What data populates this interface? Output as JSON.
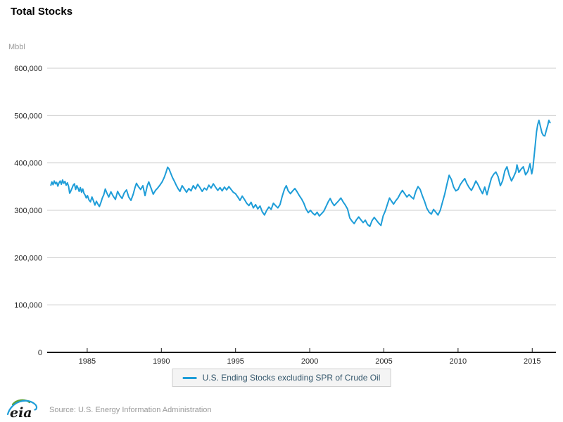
{
  "header": {
    "title": "Total Stocks"
  },
  "unit_label": "Mbbl",
  "legend": {
    "label": "U.S. Ending Stocks excluding SPR of Crude Oil"
  },
  "footer": {
    "logo_text": "eia",
    "source": "Source: U.S. Energy Information Administration"
  },
  "colors": {
    "line": "#1e9dd8",
    "gridline": "#cccccc",
    "axis": "#1a1a1a",
    "tick_text": "#262626",
    "muted_text": "#999999",
    "legend_bg": "#f4f4f4",
    "legend_border": "#cfcfcf",
    "legend_text": "#33566b",
    "logo_green": "#5fa33a",
    "logo_blue": "#1e9dd8"
  },
  "chart_data": {
    "type": "line",
    "title": "Total Stocks",
    "ylabel": "Mbbl",
    "xlabel": "",
    "grid": true,
    "legend_position": "bottom-center",
    "xlim": [
      1982.3,
      2016.6
    ],
    "ylim": [
      0,
      600000
    ],
    "xticks": [
      {
        "value": 1985,
        "label": "1985"
      },
      {
        "value": 1990,
        "label": "1990"
      },
      {
        "value": 1995,
        "label": "1995"
      },
      {
        "value": 2000,
        "label": "2000"
      },
      {
        "value": 2005,
        "label": "2005"
      },
      {
        "value": 2010,
        "label": "2010"
      },
      {
        "value": 2015,
        "label": "2015"
      }
    ],
    "yticks": [
      {
        "value": 0,
        "label": "0"
      },
      {
        "value": 100000,
        "label": "100,000"
      },
      {
        "value": 200000,
        "label": "200,000"
      },
      {
        "value": 300000,
        "label": "300,000"
      },
      {
        "value": 400000,
        "label": "400,000"
      },
      {
        "value": 500000,
        "label": "500,000"
      },
      {
        "value": 600000,
        "label": "600,000"
      }
    ],
    "series": [
      {
        "name": "U.S. Ending Stocks excluding SPR of Crude Oil",
        "color": "#1e9dd8",
        "points": [
          [
            1982.55,
            353000
          ],
          [
            1982.62,
            360000
          ],
          [
            1982.7,
            354000
          ],
          [
            1982.78,
            362000
          ],
          [
            1982.86,
            356000
          ],
          [
            1982.94,
            359000
          ],
          [
            1983.02,
            351000
          ],
          [
            1983.1,
            358000
          ],
          [
            1983.18,
            362000
          ],
          [
            1983.26,
            355000
          ],
          [
            1983.34,
            364000
          ],
          [
            1983.42,
            357000
          ],
          [
            1983.5,
            361000
          ],
          [
            1983.58,
            353000
          ],
          [
            1983.66,
            358000
          ],
          [
            1983.74,
            351000
          ],
          [
            1983.82,
            336000
          ],
          [
            1983.9,
            341000
          ],
          [
            1983.98,
            347000
          ],
          [
            1984.06,
            353000
          ],
          [
            1984.14,
            356000
          ],
          [
            1984.22,
            344000
          ],
          [
            1984.3,
            352000
          ],
          [
            1984.38,
            347000
          ],
          [
            1984.46,
            340000
          ],
          [
            1984.54,
            348000
          ],
          [
            1984.62,
            338000
          ],
          [
            1984.7,
            345000
          ],
          [
            1984.78,
            336000
          ],
          [
            1984.86,
            332000
          ],
          [
            1984.94,
            326000
          ],
          [
            1985.02,
            331000
          ],
          [
            1985.12,
            322000
          ],
          [
            1985.22,
            318000
          ],
          [
            1985.32,
            328000
          ],
          [
            1985.42,
            320000
          ],
          [
            1985.52,
            311000
          ],
          [
            1985.62,
            319000
          ],
          [
            1985.72,
            313000
          ],
          [
            1985.82,
            308000
          ],
          [
            1985.92,
            316000
          ],
          [
            1986.02,
            326000
          ],
          [
            1986.12,
            333000
          ],
          [
            1986.22,
            345000
          ],
          [
            1986.32,
            337000
          ],
          [
            1986.45,
            328000
          ],
          [
            1986.6,
            339000
          ],
          [
            1986.75,
            330000
          ],
          [
            1986.9,
            323000
          ],
          [
            1987.05,
            340000
          ],
          [
            1987.2,
            331000
          ],
          [
            1987.35,
            325000
          ],
          [
            1987.5,
            337000
          ],
          [
            1987.65,
            343000
          ],
          [
            1987.8,
            328000
          ],
          [
            1987.95,
            321000
          ],
          [
            1988.1,
            334000
          ],
          [
            1988.22,
            348000
          ],
          [
            1988.32,
            357000
          ],
          [
            1988.45,
            350000
          ],
          [
            1988.6,
            344000
          ],
          [
            1988.75,
            352000
          ],
          [
            1988.9,
            331000
          ],
          [
            1989.05,
            352000
          ],
          [
            1989.15,
            360000
          ],
          [
            1989.3,
            347000
          ],
          [
            1989.45,
            334000
          ],
          [
            1989.6,
            342000
          ],
          [
            1989.75,
            347000
          ],
          [
            1989.9,
            353000
          ],
          [
            1990.05,
            360000
          ],
          [
            1990.2,
            370000
          ],
          [
            1990.32,
            381000
          ],
          [
            1990.42,
            391000
          ],
          [
            1990.52,
            387000
          ],
          [
            1990.62,
            379000
          ],
          [
            1990.75,
            369000
          ],
          [
            1990.88,
            361000
          ],
          [
            1991.0,
            353000
          ],
          [
            1991.12,
            346000
          ],
          [
            1991.25,
            340000
          ],
          [
            1991.4,
            352000
          ],
          [
            1991.55,
            345000
          ],
          [
            1991.7,
            338000
          ],
          [
            1991.85,
            346000
          ],
          [
            1992.0,
            341000
          ],
          [
            1992.15,
            352000
          ],
          [
            1992.3,
            345000
          ],
          [
            1992.45,
            355000
          ],
          [
            1992.6,
            348000
          ],
          [
            1992.75,
            340000
          ],
          [
            1992.9,
            347000
          ],
          [
            1993.05,
            343000
          ],
          [
            1993.2,
            353000
          ],
          [
            1993.35,
            347000
          ],
          [
            1993.5,
            356000
          ],
          [
            1993.65,
            349000
          ],
          [
            1993.8,
            342000
          ],
          [
            1993.95,
            348000
          ],
          [
            1994.1,
            341000
          ],
          [
            1994.25,
            349000
          ],
          [
            1994.4,
            343000
          ],
          [
            1994.55,
            350000
          ],
          [
            1994.7,
            344000
          ],
          [
            1994.85,
            338000
          ],
          [
            1995.0,
            335000
          ],
          [
            1995.15,
            328000
          ],
          [
            1995.3,
            321000
          ],
          [
            1995.45,
            330000
          ],
          [
            1995.6,
            323000
          ],
          [
            1995.75,
            315000
          ],
          [
            1995.9,
            310000
          ],
          [
            1996.05,
            317000
          ],
          [
            1996.2,
            305000
          ],
          [
            1996.35,
            312000
          ],
          [
            1996.5,
            303000
          ],
          [
            1996.65,
            309000
          ],
          [
            1996.8,
            297000
          ],
          [
            1996.95,
            290000
          ],
          [
            1997.1,
            300000
          ],
          [
            1997.25,
            307000
          ],
          [
            1997.4,
            302000
          ],
          [
            1997.55,
            315000
          ],
          [
            1997.7,
            310000
          ],
          [
            1997.85,
            305000
          ],
          [
            1998.0,
            312000
          ],
          [
            1998.15,
            330000
          ],
          [
            1998.3,
            345000
          ],
          [
            1998.42,
            352000
          ],
          [
            1998.55,
            341000
          ],
          [
            1998.7,
            335000
          ],
          [
            1998.85,
            341000
          ],
          [
            1999.0,
            346000
          ],
          [
            1999.15,
            339000
          ],
          [
            1999.3,
            331000
          ],
          [
            1999.45,
            324000
          ],
          [
            1999.6,
            315000
          ],
          [
            1999.75,
            303000
          ],
          [
            1999.9,
            295000
          ],
          [
            2000.05,
            300000
          ],
          [
            2000.2,
            294000
          ],
          [
            2000.35,
            290000
          ],
          [
            2000.5,
            296000
          ],
          [
            2000.65,
            288000
          ],
          [
            2000.8,
            293000
          ],
          [
            2000.95,
            298000
          ],
          [
            2001.1,
            308000
          ],
          [
            2001.25,
            318000
          ],
          [
            2001.38,
            325000
          ],
          [
            2001.5,
            317000
          ],
          [
            2001.65,
            310000
          ],
          [
            2001.8,
            315000
          ],
          [
            2001.95,
            320000
          ],
          [
            2002.1,
            326000
          ],
          [
            2002.25,
            318000
          ],
          [
            2002.4,
            311000
          ],
          [
            2002.55,
            303000
          ],
          [
            2002.7,
            284000
          ],
          [
            2002.85,
            277000
          ],
          [
            2003.0,
            272000
          ],
          [
            2003.15,
            280000
          ],
          [
            2003.3,
            286000
          ],
          [
            2003.45,
            280000
          ],
          [
            2003.6,
            274000
          ],
          [
            2003.75,
            279000
          ],
          [
            2003.9,
            270000
          ],
          [
            2004.05,
            266000
          ],
          [
            2004.2,
            278000
          ],
          [
            2004.35,
            285000
          ],
          [
            2004.5,
            279000
          ],
          [
            2004.65,
            273000
          ],
          [
            2004.8,
            268000
          ],
          [
            2004.95,
            288000
          ],
          [
            2005.1,
            299000
          ],
          [
            2005.25,
            314000
          ],
          [
            2005.38,
            326000
          ],
          [
            2005.5,
            320000
          ],
          [
            2005.65,
            313000
          ],
          [
            2005.8,
            320000
          ],
          [
            2005.95,
            326000
          ],
          [
            2006.1,
            335000
          ],
          [
            2006.25,
            342000
          ],
          [
            2006.4,
            335000
          ],
          [
            2006.55,
            328000
          ],
          [
            2006.7,
            333000
          ],
          [
            2006.85,
            328000
          ],
          [
            2007.0,
            324000
          ],
          [
            2007.15,
            340000
          ],
          [
            2007.3,
            350000
          ],
          [
            2007.45,
            344000
          ],
          [
            2007.6,
            330000
          ],
          [
            2007.75,
            318000
          ],
          [
            2007.9,
            304000
          ],
          [
            2008.05,
            296000
          ],
          [
            2008.2,
            292000
          ],
          [
            2008.35,
            302000
          ],
          [
            2008.5,
            296000
          ],
          [
            2008.65,
            290000
          ],
          [
            2008.8,
            300000
          ],
          [
            2008.95,
            317000
          ],
          [
            2009.1,
            334000
          ],
          [
            2009.25,
            355000
          ],
          [
            2009.4,
            374000
          ],
          [
            2009.55,
            365000
          ],
          [
            2009.7,
            349000
          ],
          [
            2009.85,
            341000
          ],
          [
            2010.0,
            344000
          ],
          [
            2010.15,
            354000
          ],
          [
            2010.3,
            361000
          ],
          [
            2010.45,
            367000
          ],
          [
            2010.6,
            356000
          ],
          [
            2010.75,
            348000
          ],
          [
            2010.9,
            342000
          ],
          [
            2011.05,
            351000
          ],
          [
            2011.2,
            362000
          ],
          [
            2011.35,
            354000
          ],
          [
            2011.5,
            344000
          ],
          [
            2011.65,
            335000
          ],
          [
            2011.8,
            349000
          ],
          [
            2011.95,
            333000
          ],
          [
            2012.1,
            351000
          ],
          [
            2012.25,
            368000
          ],
          [
            2012.4,
            376000
          ],
          [
            2012.55,
            381000
          ],
          [
            2012.7,
            371000
          ],
          [
            2012.85,
            352000
          ],
          [
            2013.0,
            362000
          ],
          [
            2013.15,
            383000
          ],
          [
            2013.3,
            392000
          ],
          [
            2013.45,
            374000
          ],
          [
            2013.6,
            362000
          ],
          [
            2013.75,
            371000
          ],
          [
            2013.9,
            382000
          ],
          [
            2013.97,
            396000
          ],
          [
            2014.1,
            380000
          ],
          [
            2014.25,
            387000
          ],
          [
            2014.4,
            392000
          ],
          [
            2014.55,
            375000
          ],
          [
            2014.7,
            382000
          ],
          [
            2014.85,
            398000
          ],
          [
            2014.97,
            377000
          ],
          [
            2015.05,
            390000
          ],
          [
            2015.13,
            415000
          ],
          [
            2015.21,
            440000
          ],
          [
            2015.29,
            466000
          ],
          [
            2015.37,
            481000
          ],
          [
            2015.45,
            490000
          ],
          [
            2015.55,
            477000
          ],
          [
            2015.65,
            464000
          ],
          [
            2015.75,
            458000
          ],
          [
            2015.85,
            457000
          ],
          [
            2015.95,
            469000
          ],
          [
            2016.05,
            480000
          ],
          [
            2016.12,
            490000
          ],
          [
            2016.2,
            485000
          ]
        ]
      }
    ]
  }
}
